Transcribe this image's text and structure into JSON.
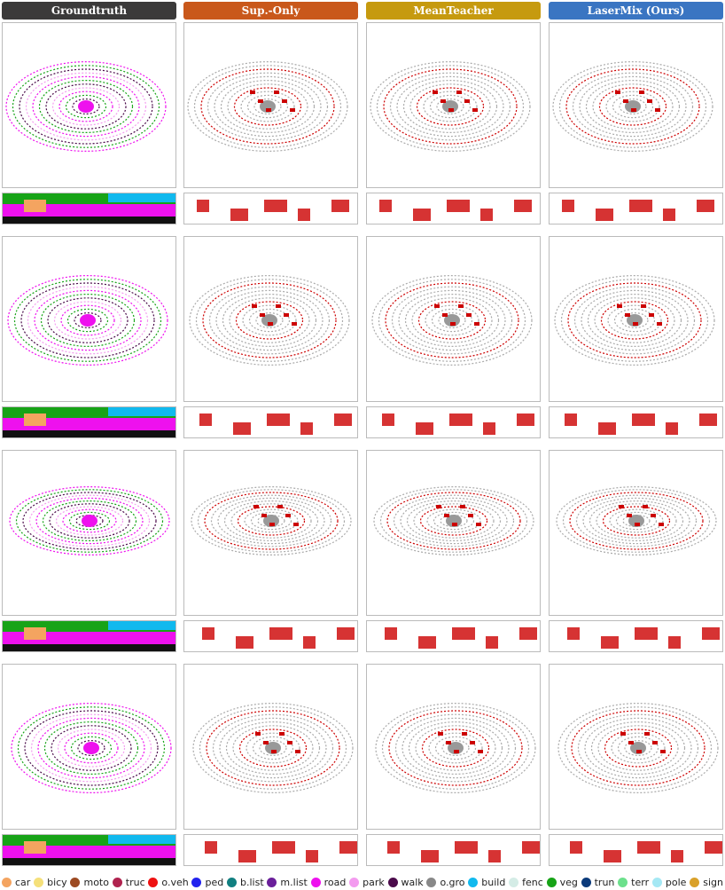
{
  "columns": [
    {
      "title": "Groundtruth",
      "color": "#3b3a3a"
    },
    {
      "title": "Sup.-Only",
      "color": "#c9581b"
    },
    {
      "title": "MeanTeacher",
      "color": "#c69a0f"
    },
    {
      "title": "LaserMix (Ours)",
      "color": "#3a75c2"
    }
  ],
  "legend": [
    {
      "label": "car",
      "color": "#f4a460"
    },
    {
      "label": "bicy",
      "color": "#f5e07a"
    },
    {
      "label": "moto",
      "color": "#9c4a22"
    },
    {
      "label": "truc",
      "color": "#b0234f"
    },
    {
      "label": "o.veh",
      "color": "#ee1111"
    },
    {
      "label": "ped",
      "color": "#2222ee"
    },
    {
      "label": "b.list",
      "color": "#117f80"
    },
    {
      "label": "m.list",
      "color": "#6a1f9a"
    },
    {
      "label": "road",
      "color": "#ee11ee"
    },
    {
      "label": "park",
      "color": "#f39bef"
    },
    {
      "label": "walk",
      "color": "#4a0a4a"
    },
    {
      "label": "o.gro",
      "color": "#888888"
    },
    {
      "label": "build",
      "color": "#11b9ee"
    },
    {
      "label": "fenc",
      "color": "#d4ece6"
    },
    {
      "label": "veg",
      "color": "#17a317"
    },
    {
      "label": "trun",
      "color": "#0b3a7a"
    },
    {
      "label": "terr",
      "color": "#6ce08c"
    },
    {
      "label": "pole",
      "color": "#a5e8f4"
    },
    {
      "label": "sign",
      "color": "#d9a12a"
    }
  ]
}
